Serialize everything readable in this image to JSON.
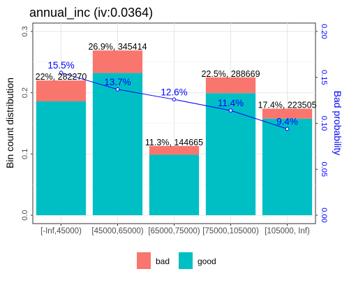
{
  "chart_data": {
    "type": "bar",
    "title": "annual_inc  (iv:0.0364)",
    "xlabel": "",
    "ylabel": "Bin count distribution",
    "y2label": "Bad probability",
    "ylim": [
      0,
      0.3
    ],
    "y2lim": [
      0,
      0.2
    ],
    "yticks": [
      "0.0",
      "0.1",
      "0.2",
      "0.3"
    ],
    "y2ticks": [
      "0.00",
      "0.05",
      "0.10",
      "0.15",
      "0.20"
    ],
    "categories": [
      "[-Inf,45000)",
      "[45000,65000)",
      "[65000,75000)",
      "[75000,105000)",
      "[105000, Inf)"
    ],
    "series": [
      {
        "name": "bad",
        "color": "#F8766D",
        "values": [
          0.0341,
          0.0368,
          0.0142,
          0.0257,
          0.0164
        ]
      },
      {
        "name": "good",
        "color": "#00BFC4",
        "values": [
          0.1859,
          0.2322,
          0.0988,
          0.1993,
          0.1576
        ]
      }
    ],
    "bar_labels": [
      "22%, 282270",
      "26.9%, 345414",
      "11.3%, 144665",
      "22.5%, 288669",
      "17.4%, 223505"
    ],
    "line": {
      "name": "Bad probability",
      "color": "#0000FF",
      "values": [
        0.155,
        0.137,
        0.126,
        0.114,
        0.094
      ],
      "labels": [
        "15.5%",
        "13.7%",
        "12.6%",
        "11.4%",
        "9.4%"
      ]
    },
    "legend_position": "bottom",
    "grid": true
  }
}
